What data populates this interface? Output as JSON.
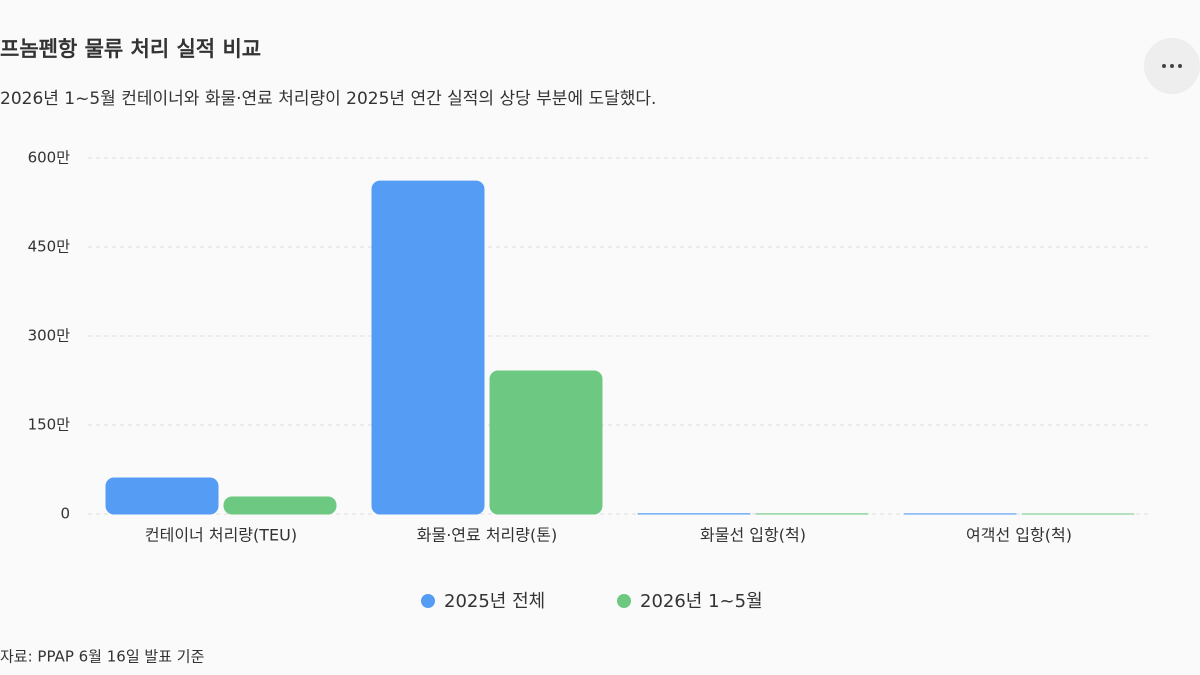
{
  "chart_data": {
    "type": "bar",
    "title": "프놈펜항 물류 처리 실적 비교",
    "subtitle": "2026년 1~5월 컨테이너와 화물·연료 처리량이 2025년 연간 실적의 상당 부분에 도달했다.",
    "categories": [
      "컨테이너 처리량(TEU)",
      "화물·연료 처리량(톤)",
      "화물선 입항(척)",
      "여객선 입항(척)"
    ],
    "series": [
      {
        "name": "2025년 전체",
        "color": "#559cf5",
        "values": [
          607000,
          5610000,
          4000,
          2000
        ]
      },
      {
        "name": "2026년 1~5월",
        "color": "#6dc882",
        "values": [
          287000,
          2410000,
          1700,
          800
        ]
      }
    ],
    "ylim": [
      0,
      6000000
    ],
    "yticks": [
      {
        "value": 0,
        "label": "0"
      },
      {
        "value": 1500000,
        "label": "150만"
      },
      {
        "value": 3000000,
        "label": "300만"
      },
      {
        "value": 4500000,
        "label": "450만"
      },
      {
        "value": 6000000,
        "label": "600만"
      }
    ],
    "grid": true,
    "legend": "bottom",
    "source": "자료: PPAP 6월 16일 발표 기준"
  }
}
